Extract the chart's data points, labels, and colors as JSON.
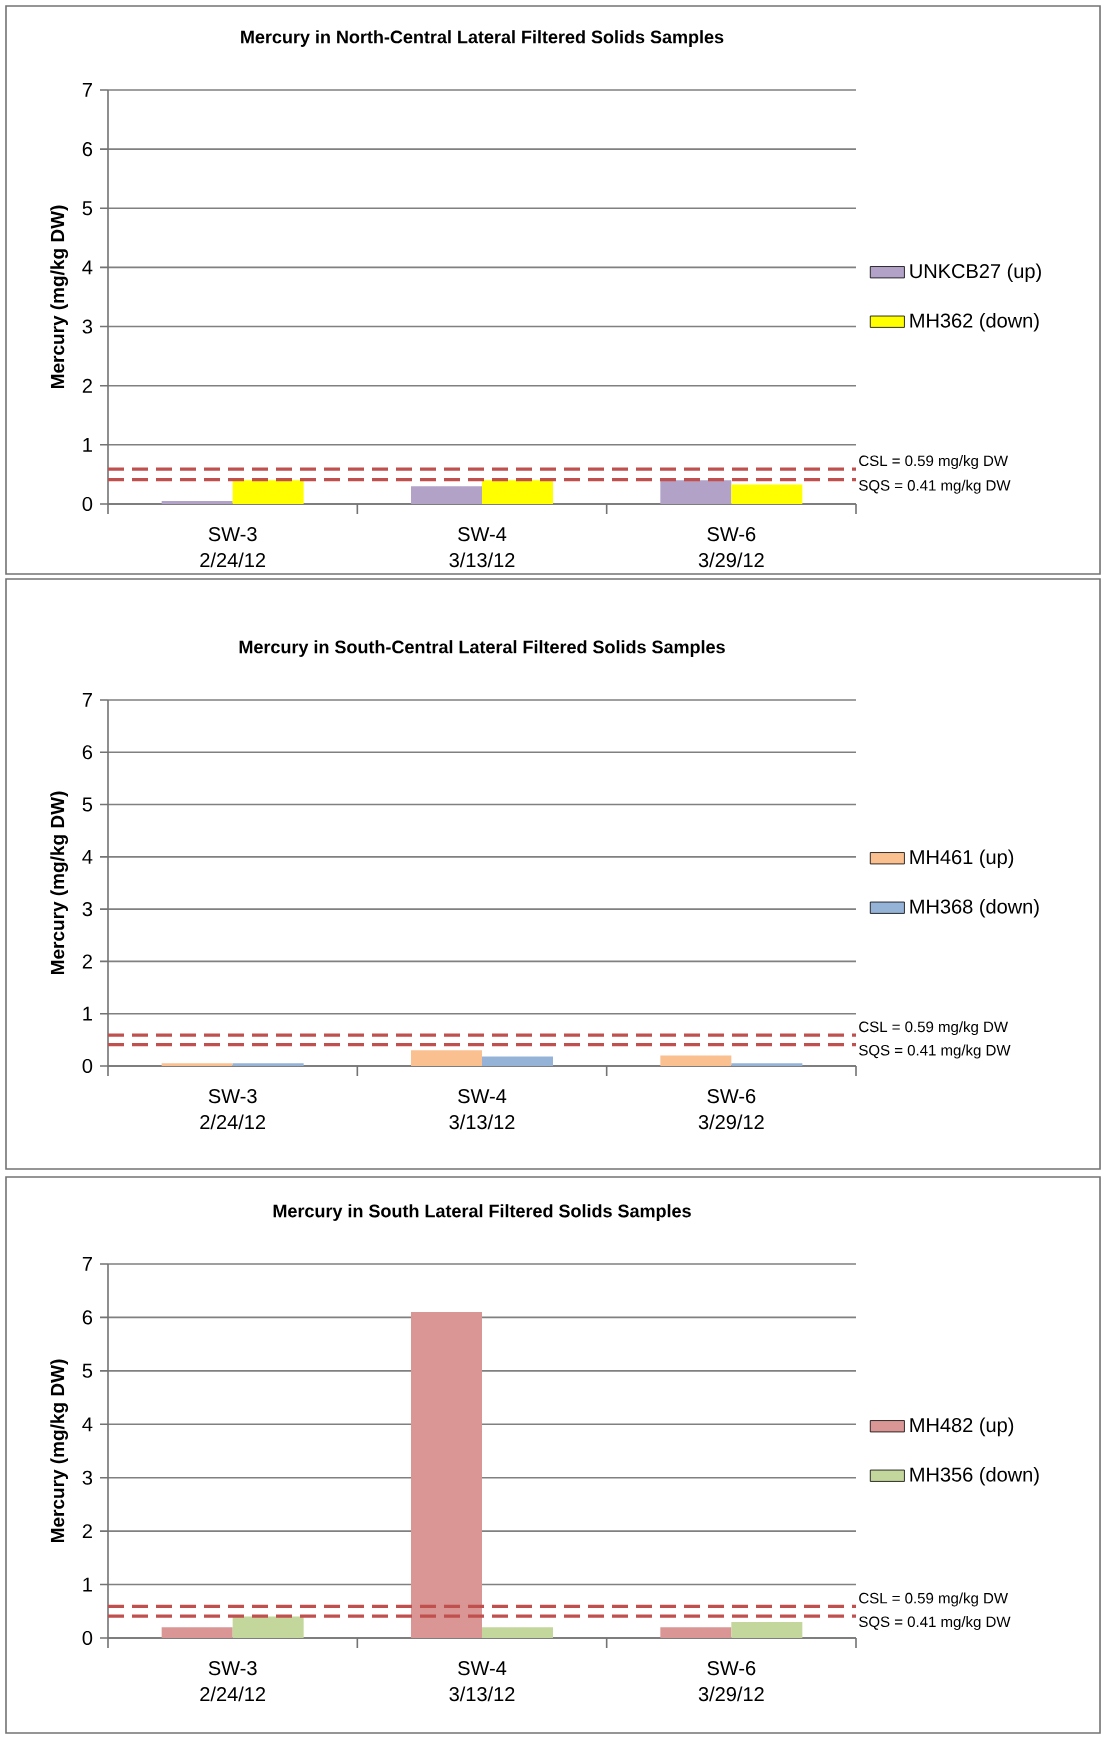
{
  "chart_data": [
    {
      "type": "bar",
      "title": "Mercury in North-Central Lateral Filtered Solids Samples",
      "ylabel": "Mercury (mg/kg DW)",
      "categories": [
        "SW-3 2/24/12",
        "SW-4 3/13/12",
        "SW-6 3/29/12"
      ],
      "series": [
        {
          "name": "UNKCB27 (up)",
          "color": "#b3a2c7",
          "values": [
            0.05,
            0.3,
            0.4
          ]
        },
        {
          "name": "MH362 (down)",
          "color": "#ffff00",
          "values": [
            0.4,
            0.4,
            0.33
          ]
        }
      ],
      "ylim": [
        0,
        7
      ],
      "yticks": [
        0,
        1,
        2,
        3,
        4,
        5,
        6,
        7
      ],
      "grid": "y",
      "legend": "right",
      "ref_lines": [
        {
          "axis": "y",
          "value": 0.59,
          "label": "CSL = 0.59 mg/kg DW",
          "color": "#c0504d",
          "line_style": "dashed"
        },
        {
          "axis": "y",
          "value": 0.41,
          "label": "SQS = 0.41 mg/kg DW",
          "color": "#c0504d",
          "line_style": "dashed"
        }
      ]
    },
    {
      "type": "bar",
      "title": "Mercury in South-Central Lateral Filtered Solids Samples",
      "ylabel": "Mercury (mg/kg DW)",
      "categories": [
        "SW-3 2/24/12",
        "SW-4 3/13/12",
        "SW-6 3/29/12"
      ],
      "series": [
        {
          "name": "MH461 (up)",
          "color": "#fac090",
          "values": [
            0.05,
            0.3,
            0.2
          ]
        },
        {
          "name": "MH368 (down)",
          "color": "#95b3d7",
          "values": [
            0.05,
            0.18,
            0.05
          ]
        }
      ],
      "ylim": [
        0,
        7
      ],
      "yticks": [
        0,
        1,
        2,
        3,
        4,
        5,
        6,
        7
      ],
      "grid": "y",
      "legend": "right",
      "ref_lines": [
        {
          "axis": "y",
          "value": 0.59,
          "label": "CSL = 0.59 mg/kg DW",
          "color": "#c0504d",
          "line_style": "dashed"
        },
        {
          "axis": "y",
          "value": 0.41,
          "label": "SQS = 0.41 mg/kg DW",
          "color": "#c0504d",
          "line_style": "dashed"
        }
      ]
    },
    {
      "type": "bar",
      "title": "Mercury in South Lateral Filtered Solids Samples",
      "ylabel": "Mercury (mg/kg DW)",
      "categories": [
        "SW-3 2/24/12",
        "SW-4 3/13/12",
        "SW-6 3/29/12"
      ],
      "series": [
        {
          "name": "MH482 (up)",
          "color": "#d99694",
          "values": [
            0.2,
            6.1,
            0.2
          ]
        },
        {
          "name": "MH356 (down)",
          "color": "#c3d69b",
          "values": [
            0.4,
            0.2,
            0.3
          ]
        }
      ],
      "ylim": [
        0,
        7
      ],
      "yticks": [
        0,
        1,
        2,
        3,
        4,
        5,
        6,
        7
      ],
      "grid": "y",
      "legend": "right",
      "ref_lines": [
        {
          "axis": "y",
          "value": 0.59,
          "label": "CSL = 0.59 mg/kg DW",
          "color": "#c0504d",
          "line_style": "dashed"
        },
        {
          "axis": "y",
          "value": 0.41,
          "label": "SQS = 0.41 mg/kg DW",
          "color": "#c0504d",
          "line_style": "dashed"
        }
      ]
    }
  ]
}
